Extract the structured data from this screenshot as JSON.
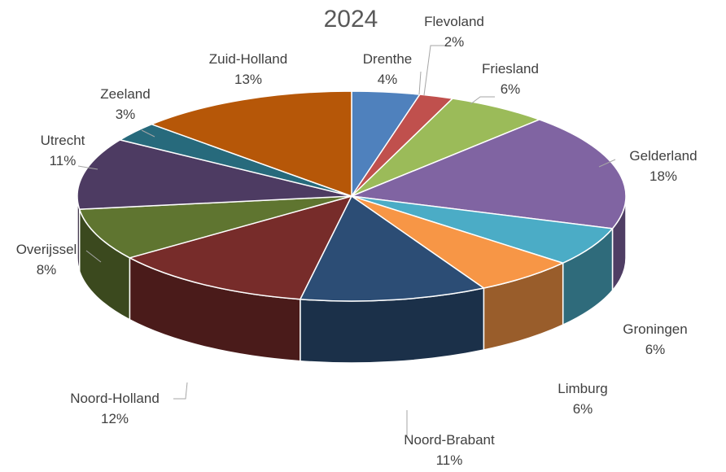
{
  "chart_data": {
    "type": "pie",
    "style": "3d",
    "title": "2024",
    "slices": [
      {
        "label": "Drenthe",
        "value": 4,
        "display": "4%",
        "color": "#4f81bd"
      },
      {
        "label": "Flevoland",
        "value": 2,
        "display": "2%",
        "color": "#c0504d"
      },
      {
        "label": "Friesland",
        "value": 6,
        "display": "6%",
        "color": "#9bbb59"
      },
      {
        "label": "Gelderland",
        "value": 18,
        "display": "18%",
        "color": "#8064a2"
      },
      {
        "label": "Groningen",
        "value": 6,
        "display": "6%",
        "color": "#4bacc6"
      },
      {
        "label": "Limburg",
        "value": 6,
        "display": "6%",
        "color": "#f79646"
      },
      {
        "label": "Noord-Brabant",
        "value": 11,
        "display": "11%",
        "color": "#2c4d75"
      },
      {
        "label": "Noord-Holland",
        "value": 12,
        "display": "12%",
        "color": "#772c2a"
      },
      {
        "label": "Overijssel",
        "value": 8,
        "display": "8%",
        "color": "#5f7530"
      },
      {
        "label": "Utrecht",
        "value": 11,
        "display": "11%",
        "color": "#4d3b62"
      },
      {
        "label": "Zeeland",
        "value": 3,
        "display": "3%",
        "color": "#276a7c"
      },
      {
        "label": "Zuid-Holland",
        "value": 13,
        "display": "13%",
        "color": "#b65708"
      }
    ]
  }
}
